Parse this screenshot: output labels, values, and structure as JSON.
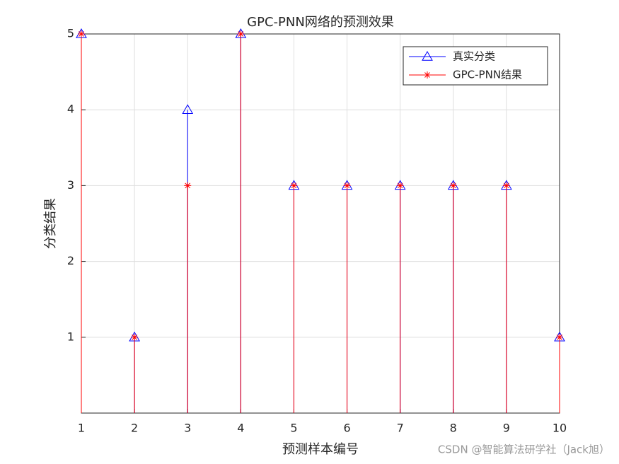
{
  "chart_data": {
    "type": "stem",
    "title": "GPC-PNN网络的预测效果",
    "xlabel": "预测样本编号",
    "ylabel": "分类结果",
    "x": [
      1,
      2,
      3,
      4,
      5,
      6,
      7,
      8,
      9,
      10
    ],
    "series": [
      {
        "name": "真实分类",
        "color": "#0000ff",
        "marker": "triangle",
        "values": [
          5,
          1,
          4,
          5,
          3,
          3,
          3,
          3,
          3,
          1
        ]
      },
      {
        "name": "GPC-PNN结果",
        "color": "#ff0000",
        "marker": "asterisk",
        "values": [
          5,
          1,
          3,
          5,
          3,
          3,
          3,
          3,
          3,
          1
        ]
      }
    ],
    "xlim": [
      1,
      10
    ],
    "xticks": [
      1,
      2,
      3,
      4,
      5,
      6,
      7,
      8,
      9,
      10
    ],
    "ylim": [
      0,
      5
    ],
    "yticks": [
      1,
      2,
      3,
      4,
      5
    ],
    "grid": true,
    "legend": "northeast",
    "watermark": "CSDN @智能算法研学社（Jack旭）"
  }
}
